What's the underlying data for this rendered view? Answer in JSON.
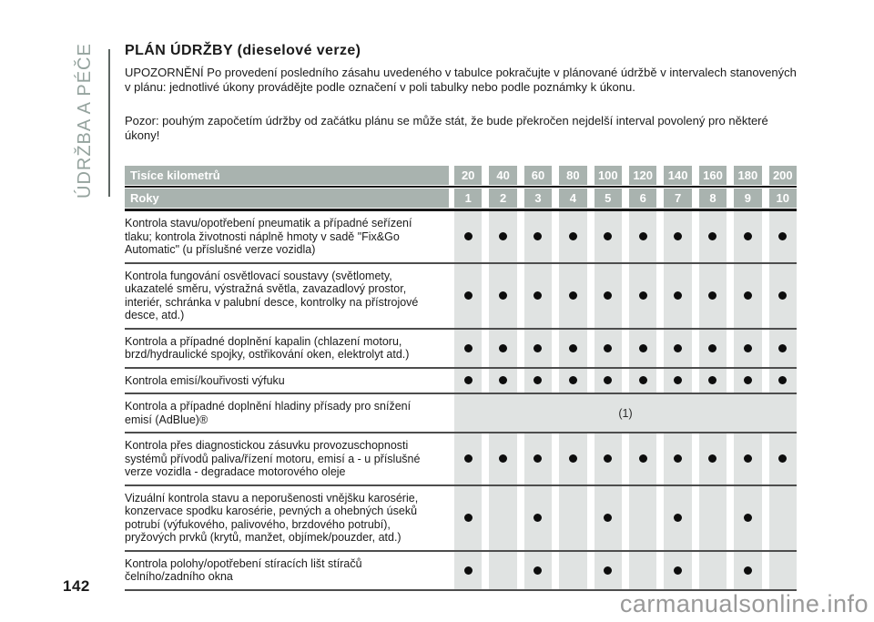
{
  "sidebar": {
    "label": "ÚDRŽBA A PÉČE"
  },
  "content": {
    "title": "PLÁN ÚDRŽBY (dieselové verze)",
    "paragraph1": "UPOZORNĚNÍ Po provedení posledního zásahu uvedeného v tabulce pokračujte v plánované údržbě v intervalech stanovených v plánu: jednotlivé úkony provádějte podle označení v poli tabulky nebo podle poznámky k úkonu.",
    "paragraph2": "Pozor: pouhým započetím údržby od začátku plánu se může stát, že bude překročen nejdelší interval povolený pro některé úkony!"
  },
  "table": {
    "header_km_label": "Tisíce kilometrů",
    "header_years_label": "Roky",
    "km_values": [
      "20",
      "40",
      "60",
      "80",
      "100",
      "120",
      "140",
      "160",
      "180",
      "200"
    ],
    "year_values": [
      "1",
      "2",
      "3",
      "4",
      "5",
      "6",
      "7",
      "8",
      "9",
      "10"
    ],
    "rows": [
      {
        "task": "Kontrola stavu/opotřebení pneumatik a případné seřízení tlaku; kontrola životnosti náplně hmoty v sadě \"Fix&Go Automatic\" (u příslušné verze vozidla)",
        "marks": [
          1,
          1,
          1,
          1,
          1,
          1,
          1,
          1,
          1,
          1
        ]
      },
      {
        "task": "Kontrola fungování osvětlovací soustavy (světlomety, ukazatelé směru, výstražná světla, zavazadlový prostor, interiér, schránka v palubní desce, kontrolky na přístrojové desce, atd.)",
        "marks": [
          1,
          1,
          1,
          1,
          1,
          1,
          1,
          1,
          1,
          1
        ]
      },
      {
        "task": "Kontrola a případné doplnění kapalin (chlazení motoru, brzd/hydraulické spojky, ostřikování oken, elektrolyt atd.)",
        "marks": [
          1,
          1,
          1,
          1,
          1,
          1,
          1,
          1,
          1,
          1
        ]
      },
      {
        "task": "Kontrola emisí/kouřivosti výfuku",
        "marks": [
          1,
          1,
          1,
          1,
          1,
          1,
          1,
          1,
          1,
          1
        ]
      },
      {
        "task": "Kontrola a případné doplnění hladiny přísady pro snížení emisí (AdBlue)®",
        "span_note": "(1)"
      },
      {
        "task": "Kontrola přes diagnostickou zásuvku provozuschopnosti systémů přívodů paliva/řízení motoru, emisí a - u příslušné verze vozidla - degradace motorového oleje",
        "marks": [
          1,
          1,
          1,
          1,
          1,
          1,
          1,
          1,
          1,
          1
        ]
      },
      {
        "task": "Vizuální kontrola stavu a neporušenosti vnějšku karosérie, konzervace spodku karosérie, pevných a ohebných úseků potrubí (výfukového, palivového, brzdového potrubí), pryžových prvků (krytů, manžet, objímek/pouzder, atd.)",
        "marks": [
          1,
          0,
          1,
          0,
          1,
          0,
          1,
          0,
          1,
          0
        ]
      },
      {
        "task": "Kontrola polohy/opotřebení stíracích lišt stíračů čelního/zadního okna",
        "marks": [
          1,
          0,
          1,
          0,
          1,
          0,
          1,
          0,
          1,
          0
        ]
      }
    ]
  },
  "footer": {
    "page_number": "142",
    "watermark": "carmanualsonline.info"
  },
  "colors": {
    "header_gray": "#a9b3af",
    "stripe_gray": "#e0e3e2",
    "sidebar_text": "#95a39e",
    "separator": "#4d4d4d"
  }
}
